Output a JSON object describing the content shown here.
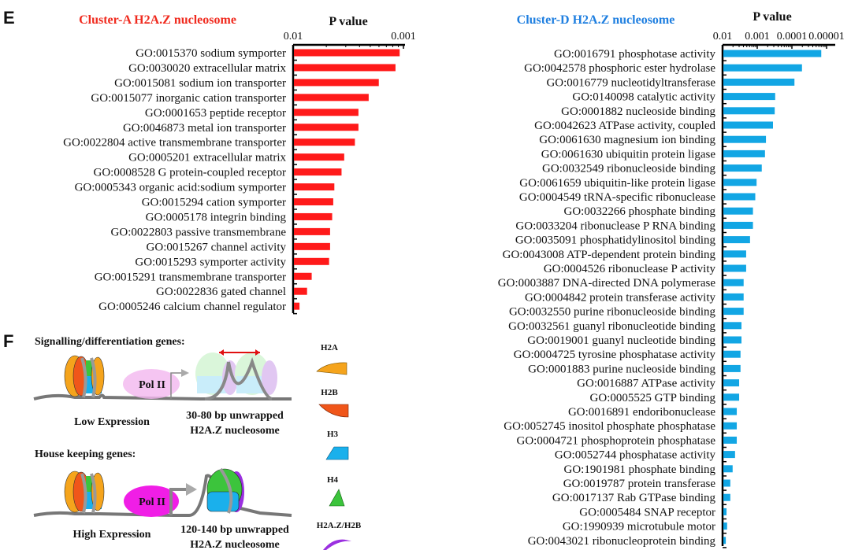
{
  "panels": {
    "e": "E",
    "f": "F"
  },
  "chart_data": [
    {
      "type": "bar",
      "orientation": "horizontal",
      "title": "Cluster-A H2A.Z nucleosome",
      "title_color": "#f02a1e",
      "bar_color": "#ff1a1a",
      "xlabel": "P value",
      "xscale": "log-reversed",
      "xlim": [
        0.01,
        0.001
      ],
      "xticks": [
        "0.01",
        "0.001"
      ],
      "categories": [
        "GO:0015370 sodium symporter",
        "GO:0030020 extracellular matrix",
        "GO:0015081 sodium ion transporter",
        "GO:0015077 inorganic cation transporter",
        "GO:0001653 peptide receptor",
        "GO:0046873 metal ion transporter",
        "GO:0022804 active transmembrane transporter",
        "GO:0005201 extracellular matrix",
        "GO:0008528 G protein-coupled receptor",
        "GO:0005343 organic acid:sodium symporter",
        "GO:0015294 cation symporter",
        "GO:0005178 integrin binding",
        "GO:0022803 passive transmembrane",
        "GO:0015267 channel activity",
        "GO:0015293 symporter activity",
        "GO:0015291 transmembrane transporter",
        "GO:0022836 gated channel",
        "GO:0005246 calcium channel regulator"
      ],
      "values": [
        0.0011,
        0.0012,
        0.0017,
        0.0021,
        0.0026,
        0.0026,
        0.0028,
        0.0035,
        0.0037,
        0.0043,
        0.0044,
        0.0045,
        0.0047,
        0.0047,
        0.0048,
        0.0069,
        0.0076,
        0.0089
      ]
    },
    {
      "type": "bar",
      "orientation": "horizontal",
      "title": "Cluster-D H2A.Z nucleosome",
      "title_color": "#1f7fe0",
      "bar_color": "#12a6e4",
      "xlabel": "P value",
      "xscale": "log-reversed",
      "xlim": [
        0.01,
        6e-06
      ],
      "xticks": [
        "0.01",
        "0.001",
        "0.0001",
        "0.00001"
      ],
      "categories": [
        "GO:0016791 phosphotase activity",
        "GO:0042578 phosphoric ester hydrolase",
        "GO:0016779 nucleotidyltransferase",
        "GO:0140098 catalytic activity",
        "GO:0001882 nucleoside binding",
        "GO:0042623 ATPase activity, coupled",
        "GO:0061630 magnesium ion binding",
        "GO:0061630 ubiquitin protein ligase",
        "GO:0032549 ribonucleoside binding",
        "GO:0061659 ubiquitin-like protein ligase",
        "GO:0004549 tRNA-specific ribonuclease",
        "GO:0032266 phosphate binding",
        "GO:0033204 ribonuclease P RNA binding",
        "GO:0035091 phosphatidylinositol binding",
        "GO:0043008 ATP-dependent protein binding",
        "GO:0004526 ribonuclease P activity",
        "GO:0003887 DNA-directed DNA polymerase",
        "GO:0004842 protein transferase activity",
        "GO:0032550 purine ribonucleoside binding",
        "GO:0032561 guanyl ribonucleotide binding",
        "GO:0019001 guanyl nucleotide binding",
        "GO:0004725 tyrosine phosphatase activity",
        "GO:0001883 purine nucleoside binding",
        "GO:0016887 ATPase activity",
        "GO:0005525 GTP binding",
        "GO:0016891 endoribonuclease",
        "GO:0052745 inositol phosphate phosphatase",
        "GO:0004721 phosphoprotein phosphatase",
        "GO:0052744 phosphatase activity",
        "GO:1901981 phosphate binding",
        "GO:0019787 protein transferase",
        "GO:0017137 Rab GTPase binding",
        "GO:0005484 SNAP receptor",
        "GO:1990939 microtubule motor",
        "GO:0043021 ribonucleoprotein binding"
      ],
      "values": [
        1.5e-05,
        5.4e-05,
        8.9e-05,
        0.00032,
        0.00033,
        0.00037,
        0.00059,
        0.00063,
        0.00078,
        0.0011,
        0.0012,
        0.0014,
        0.0014,
        0.0017,
        0.0022,
        0.0022,
        0.0026,
        0.0026,
        0.0026,
        0.003,
        0.003,
        0.0032,
        0.0032,
        0.0035,
        0.0035,
        0.0041,
        0.0041,
        0.0041,
        0.0046,
        0.0054,
        0.0063,
        0.0063,
        0.0081,
        0.0078,
        0.0085
      ]
    }
  ],
  "diagram": {
    "signalling_heading": "Signalling/differentiation genes:",
    "housekeeping_heading": "House keeping genes:",
    "pol_label": "Pol II",
    "low_expression": "Low Expression",
    "high_expression": "High Expression",
    "low_caption_1": "30-80 bp unwrapped",
    "low_caption_2": "H2A.Z nucleosome",
    "high_caption_1": "120-140 bp unwrapped",
    "high_caption_2": "H2A.Z nucleosome",
    "legend": [
      {
        "label": "H2A",
        "color": "#f5a41c"
      },
      {
        "label": "H2B",
        "color": "#f0561a"
      },
      {
        "label": "H3",
        "color": "#1ab0ec"
      },
      {
        "label": "H4",
        "color": "#3cc43c"
      },
      {
        "label": "H2A.Z/H2B",
        "color": "#9b30e0"
      }
    ]
  }
}
